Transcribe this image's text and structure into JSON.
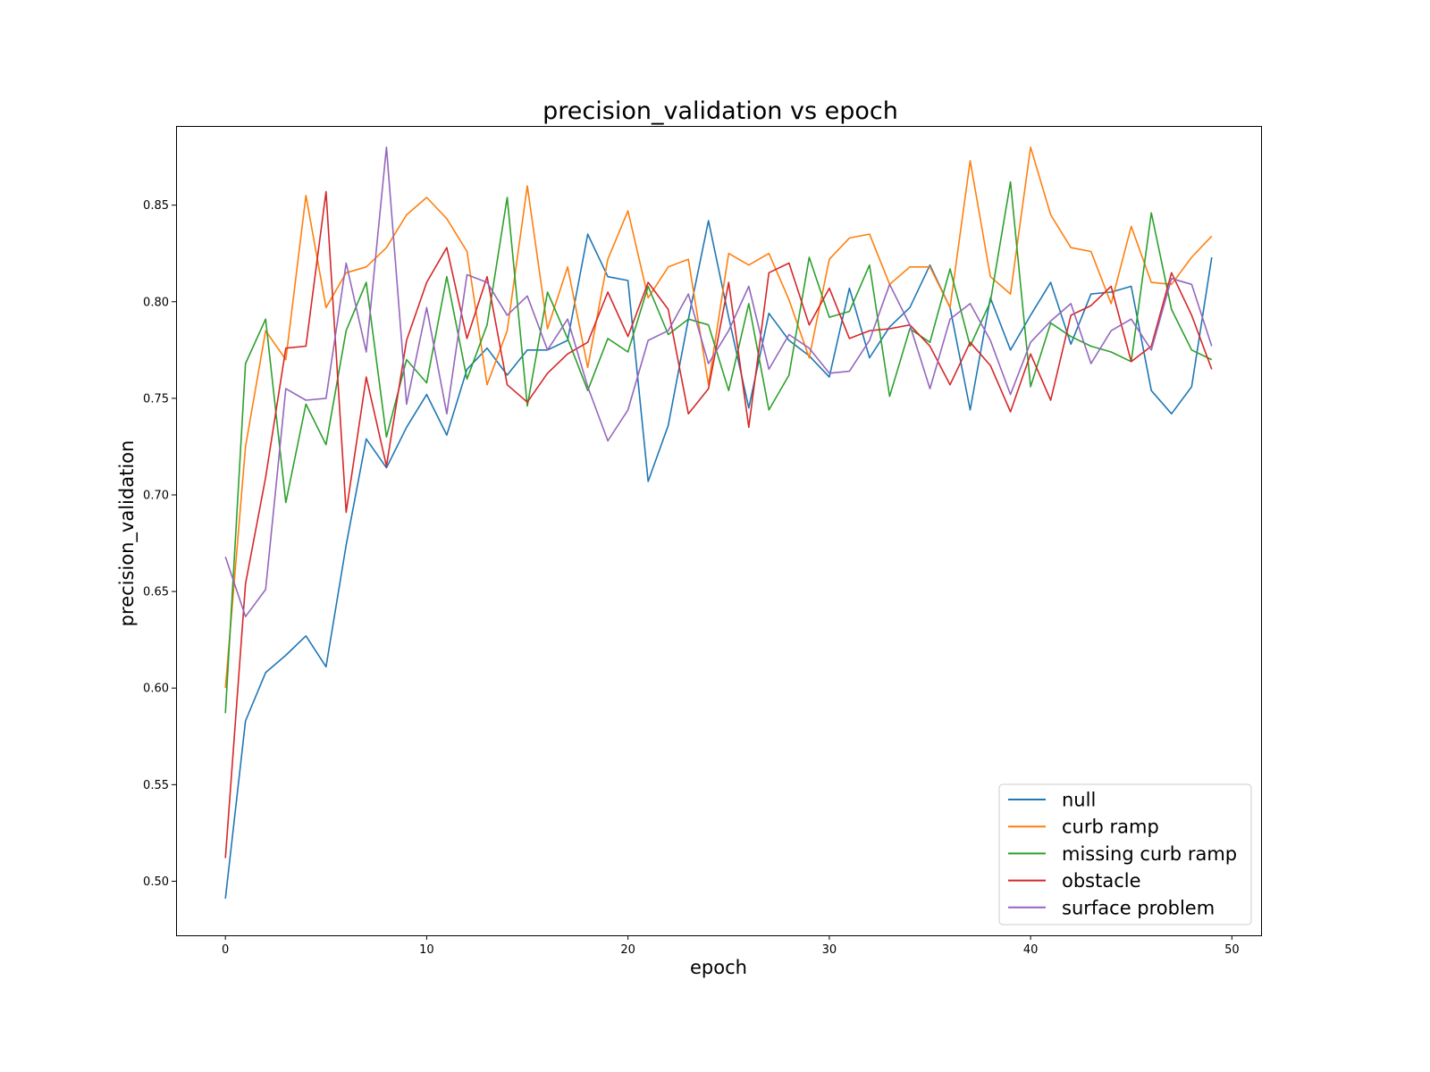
{
  "chart_data": {
    "type": "line",
    "title": "precision_validation vs epoch",
    "xlabel": "epoch",
    "ylabel": "precision_validation",
    "xlim": [
      -2.45,
      51.45
    ],
    "ylim": [
      0.472,
      0.891
    ],
    "xticks": [
      0,
      10,
      20,
      30,
      40,
      50
    ],
    "yticks": [
      0.5,
      0.55,
      0.6,
      0.65,
      0.7,
      0.75,
      0.8,
      0.85
    ],
    "ytick_labels": [
      "0.50",
      "0.55",
      "0.60",
      "0.65",
      "0.70",
      "0.75",
      "0.80",
      "0.85"
    ],
    "grid": false,
    "legend_position": "lower-right",
    "x": [
      0,
      1,
      2,
      3,
      4,
      5,
      6,
      7,
      8,
      9,
      10,
      11,
      12,
      13,
      14,
      15,
      16,
      17,
      18,
      19,
      20,
      21,
      22,
      23,
      24,
      25,
      26,
      27,
      28,
      29,
      30,
      31,
      32,
      33,
      34,
      35,
      36,
      37,
      38,
      39,
      40,
      41,
      42,
      43,
      44,
      45,
      46,
      47,
      48,
      49
    ],
    "series": [
      {
        "name": "null",
        "color": "#1f77b4",
        "values": [
          0.491,
          0.583,
          0.608,
          0.617,
          0.627,
          0.611,
          0.674,
          0.729,
          0.714,
          0.735,
          0.752,
          0.731,
          0.765,
          0.776,
          0.762,
          0.775,
          0.775,
          0.78,
          0.835,
          0.813,
          0.811,
          0.707,
          0.736,
          0.791,
          0.842,
          0.792,
          0.745,
          0.794,
          0.78,
          0.772,
          0.761,
          0.807,
          0.771,
          0.787,
          0.797,
          0.819,
          0.797,
          0.744,
          0.802,
          0.775,
          0.793,
          0.81,
          0.778,
          0.804,
          0.805,
          0.808,
          0.754,
          0.742,
          0.756,
          0.823
        ]
      },
      {
        "name": "curb ramp",
        "color": "#ff7f0e",
        "values": [
          0.6,
          0.725,
          0.785,
          0.77,
          0.855,
          0.797,
          0.815,
          0.818,
          0.828,
          0.845,
          0.854,
          0.843,
          0.826,
          0.757,
          0.785,
          0.86,
          0.786,
          0.818,
          0.766,
          0.822,
          0.847,
          0.802,
          0.818,
          0.822,
          0.757,
          0.825,
          0.819,
          0.825,
          0.801,
          0.771,
          0.822,
          0.833,
          0.835,
          0.809,
          0.818,
          0.818,
          0.797,
          0.873,
          0.813,
          0.804,
          0.88,
          0.845,
          0.828,
          0.826,
          0.799,
          0.839,
          0.81,
          0.809,
          0.823,
          0.834
        ]
      },
      {
        "name": "missing curb ramp",
        "color": "#2ca02c",
        "values": [
          0.587,
          0.768,
          0.791,
          0.696,
          0.747,
          0.726,
          0.785,
          0.81,
          0.73,
          0.77,
          0.758,
          0.813,
          0.76,
          0.788,
          0.854,
          0.746,
          0.805,
          0.781,
          0.754,
          0.781,
          0.774,
          0.808,
          0.783,
          0.791,
          0.788,
          0.754,
          0.799,
          0.744,
          0.762,
          0.823,
          0.792,
          0.795,
          0.819,
          0.751,
          0.786,
          0.779,
          0.817,
          0.777,
          0.8,
          0.862,
          0.756,
          0.789,
          0.782,
          0.777,
          0.774,
          0.769,
          0.846,
          0.796,
          0.775,
          0.77
        ]
      },
      {
        "name": "obstacle",
        "color": "#d62728",
        "values": [
          0.512,
          0.654,
          0.709,
          0.776,
          0.777,
          0.857,
          0.691,
          0.761,
          0.715,
          0.78,
          0.81,
          0.828,
          0.781,
          0.813,
          0.757,
          0.748,
          0.763,
          0.773,
          0.779,
          0.805,
          0.782,
          0.81,
          0.796,
          0.742,
          0.755,
          0.81,
          0.735,
          0.815,
          0.82,
          0.788,
          0.807,
          0.781,
          0.785,
          0.786,
          0.788,
          0.777,
          0.757,
          0.779,
          0.767,
          0.743,
          0.773,
          0.749,
          0.793,
          0.798,
          0.808,
          0.769,
          0.777,
          0.815,
          0.793,
          0.765
        ]
      },
      {
        "name": "surface problem",
        "color": "#9467bd",
        "values": [
          0.668,
          0.637,
          0.651,
          0.755,
          0.749,
          0.75,
          0.82,
          0.774,
          0.88,
          0.747,
          0.797,
          0.742,
          0.814,
          0.81,
          0.793,
          0.803,
          0.775,
          0.791,
          0.756,
          0.728,
          0.744,
          0.78,
          0.785,
          0.804,
          0.768,
          0.785,
          0.808,
          0.765,
          0.783,
          0.776,
          0.763,
          0.764,
          0.78,
          0.809,
          0.788,
          0.755,
          0.791,
          0.799,
          0.78,
          0.752,
          0.779,
          0.79,
          0.799,
          0.768,
          0.785,
          0.791,
          0.775,
          0.812,
          0.809,
          0.777
        ]
      }
    ]
  }
}
